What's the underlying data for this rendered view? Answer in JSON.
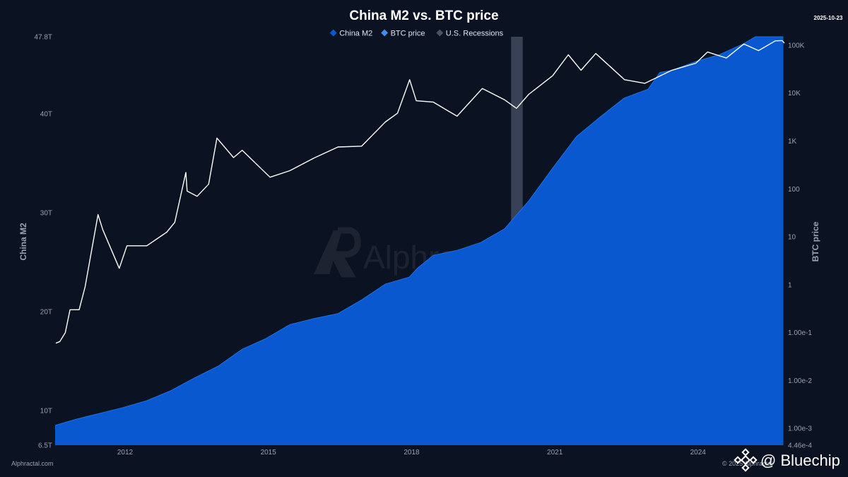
{
  "page": {
    "date": "2025-10-23",
    "source": "Alphractal.com",
    "copyright": "© 2025 Alphractal",
    "watermark": "Alphractal",
    "brand": "@ Bluechip"
  },
  "colors": {
    "background": "#0b1221",
    "m2_fill": "#0a58d0",
    "btc_line": "#ffffff",
    "recession": "#4a5366"
  },
  "icons": [
    "alphractal-logo-icon",
    "binance-logo-icon"
  ],
  "chart_data": {
    "type": "area",
    "title": "China M2 vs. BTC price",
    "legend": {
      "placement": "top-center",
      "items": [
        {
          "name": "China M2",
          "color": "#0a58d0"
        },
        {
          "name": "BTC price",
          "color": "#3f8ef0"
        },
        {
          "name": "U.S. Recessions",
          "color": "#4a5366"
        }
      ]
    },
    "x_axis": {
      "type": "date",
      "range": [
        "2010-07-15",
        "2025-10-23"
      ],
      "ticks": [
        {
          "value": "2012-01-01",
          "label": "2012"
        },
        {
          "value": "2015-01-01",
          "label": "2015"
        },
        {
          "value": "2018-01-01",
          "label": "2018"
        },
        {
          "value": "2021-01-01",
          "label": "2021"
        },
        {
          "value": "2024-01-01",
          "label": "2024"
        }
      ]
    },
    "y_left": {
      "label": "China M2",
      "range": [
        6.5,
        47.8
      ],
      "ticks": [
        {
          "value": 6.5,
          "label": "6.5T"
        },
        {
          "value": 10,
          "label": "10T"
        },
        {
          "value": 20,
          "label": "20T"
        },
        {
          "value": 30,
          "label": "30T"
        },
        {
          "value": 40,
          "label": "40T"
        },
        {
          "value": 47.8,
          "label": "47.8T"
        }
      ]
    },
    "y_right": {
      "label": "BTC price",
      "scale": "log",
      "range": [
        0.000446,
        150000
      ],
      "ticks": [
        {
          "value": 0.000446,
          "label": "4.46e-4"
        },
        {
          "value": 0.001,
          "label": "1.00e-3"
        },
        {
          "value": 0.01,
          "label": "1.00e-2"
        },
        {
          "value": 0.1,
          "label": "1.00e-1"
        },
        {
          "value": 1,
          "label": "1"
        },
        {
          "value": 10,
          "label": "10"
        },
        {
          "value": 100,
          "label": "100"
        },
        {
          "value": 1000,
          "label": "1K"
        },
        {
          "value": 10000,
          "label": "10K"
        },
        {
          "value": 100000,
          "label": "100K"
        }
      ]
    },
    "recessions": [
      {
        "start": "2020-02-01",
        "end": "2020-04-30"
      }
    ],
    "series": [
      {
        "name": "China M2",
        "axis": "left",
        "x": [
          "2010-07",
          "2010-12",
          "2011-06",
          "2011-12",
          "2012-06",
          "2012-12",
          "2013-06",
          "2013-12",
          "2014-06",
          "2014-12",
          "2015-06",
          "2015-12",
          "2016-06",
          "2016-12",
          "2017-06",
          "2017-12",
          "2018-02",
          "2018-06",
          "2018-12",
          "2019-06",
          "2019-12",
          "2020-06",
          "2020-12",
          "2021-06",
          "2021-12",
          "2022-06",
          "2022-12",
          "2023-03",
          "2023-06",
          "2023-12",
          "2024-06",
          "2024-12",
          "2025-03",
          "2025-06",
          "2025-10"
        ],
        "values": [
          8.5,
          9.1,
          9.7,
          10.3,
          11.0,
          12.0,
          13.3,
          14.5,
          16.2,
          17.3,
          18.7,
          19.3,
          19.8,
          21.2,
          22.8,
          23.5,
          24.4,
          25.7,
          26.2,
          27.0,
          28.4,
          31.2,
          34.5,
          37.7,
          39.7,
          41.6,
          42.5,
          44.2,
          44.4,
          45.3,
          46.0,
          47.1,
          48.5,
          49.2,
          52.3
        ]
      },
      {
        "name": "BTC price",
        "axis": "right",
        "x": [
          "2010-07-20",
          "2010-08-20",
          "2010-10-01",
          "2010-11-06",
          "2011-01-15",
          "2011-03-01",
          "2011-06-08",
          "2011-07-15",
          "2011-11-18",
          "2012-01-15",
          "2012-06-15",
          "2012-11-15",
          "2013-01-15",
          "2013-04-10",
          "2013-04-20",
          "2013-07-05",
          "2013-10-01",
          "2013-12-04",
          "2014-04-10",
          "2014-06-15",
          "2015-01-14",
          "2015-06-15",
          "2015-12-15",
          "2016-06-17",
          "2016-12-15",
          "2017-06-15",
          "2017-09-15",
          "2017-12-17",
          "2018-02-06",
          "2018-06-15",
          "2018-12-15",
          "2019-06-26",
          "2019-12-15",
          "2020-03-13",
          "2020-06-15",
          "2020-12-15",
          "2021-04-14",
          "2021-07-20",
          "2021-11-10",
          "2022-06-18",
          "2022-11-21",
          "2023-06-15",
          "2023-12-15",
          "2024-03-14",
          "2024-08-05",
          "2024-12-17",
          "2025-04-08",
          "2025-08-14",
          "2025-10-06",
          "2025-10-23"
        ],
        "values": [
          0.06,
          0.065,
          0.1,
          0.3,
          0.3,
          0.9,
          29,
          14,
          2.2,
          6.5,
          6.5,
          12.5,
          20,
          220,
          90,
          70,
          125,
          1150,
          450,
          640,
          175,
          240,
          440,
          750,
          780,
          2500,
          3800,
          19000,
          6900,
          6500,
          3300,
          12500,
          7200,
          4800,
          9400,
          23000,
          63000,
          30000,
          67000,
          19000,
          16000,
          30000,
          42000,
          72000,
          54000,
          106000,
          77000,
          123000,
          125000,
          110000
        ]
      }
    ]
  }
}
